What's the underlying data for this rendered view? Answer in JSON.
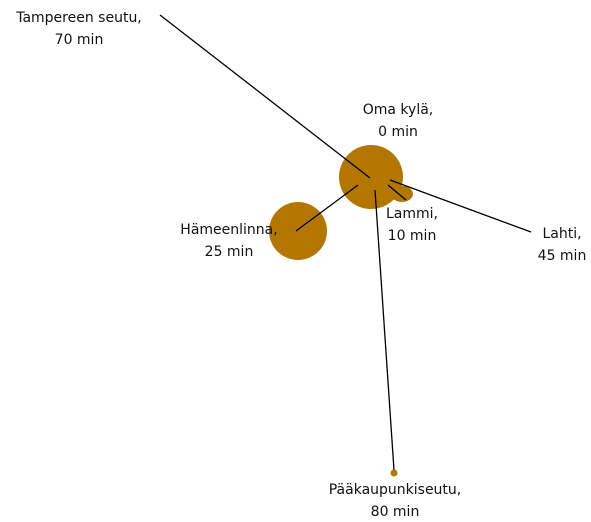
{
  "nodes": [
    {
      "name": "Oma kylä,",
      "time": "0 min"
    },
    {
      "name": "Tampereen seutu,",
      "time": "70 min"
    },
    {
      "name": "Hämeenlinna,",
      "time": "25 min"
    },
    {
      "name": "Lammi,",
      "time": "10 min"
    },
    {
      "name": "Lahti,",
      "time": "45 min"
    },
    {
      "name": "Pääkaupunkiseutu,",
      "time": "80 min"
    }
  ]
}
